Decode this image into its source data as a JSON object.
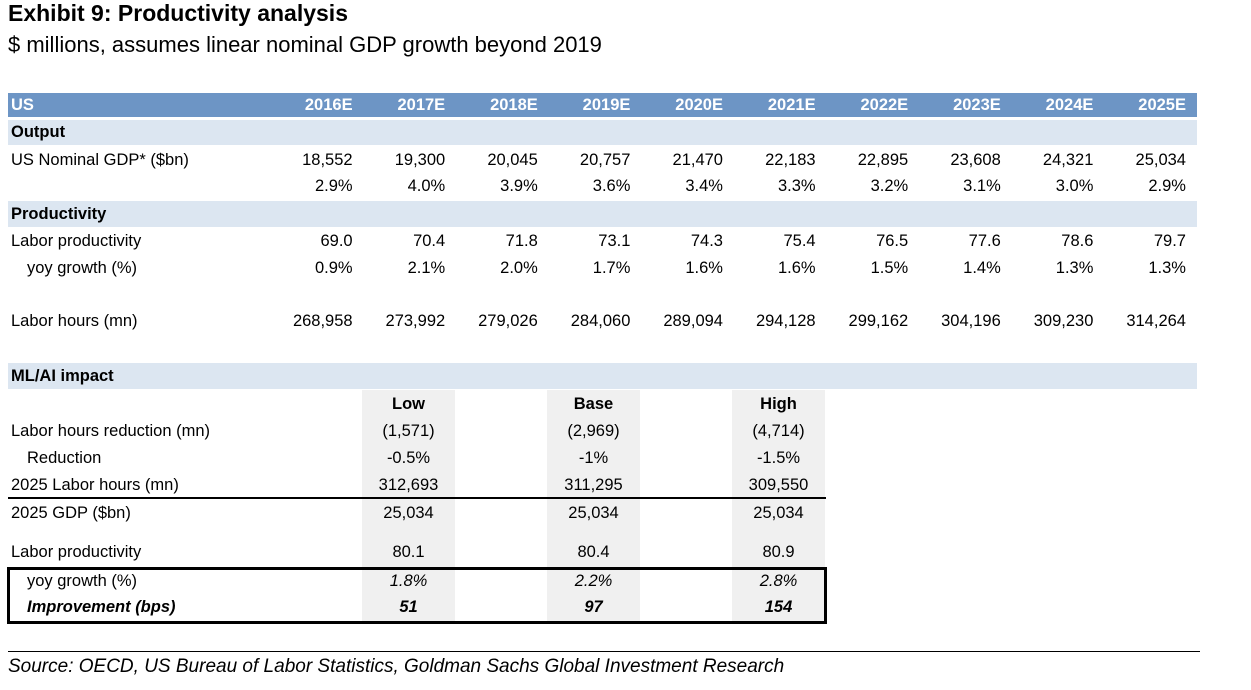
{
  "title": "Exhibit 9: Productivity analysis",
  "subtitle": "$ millions, assumes linear nominal GDP growth beyond 2019",
  "table": {
    "header": {
      "label": "US",
      "years": [
        "2016E",
        "2017E",
        "2018E",
        "2019E",
        "2020E",
        "2021E",
        "2022E",
        "2023E",
        "2024E",
        "2025E"
      ]
    },
    "rows": [
      {
        "type": "section",
        "label": "Output",
        "values": []
      },
      {
        "type": "data",
        "label": "US Nominal GDP* ($bn)",
        "values": [
          "18,552",
          "19,300",
          "20,045",
          "20,757",
          "21,470",
          "22,183",
          "22,895",
          "23,608",
          "24,321",
          "25,034"
        ]
      },
      {
        "type": "data",
        "label": "",
        "values": [
          "2.9%",
          "4.0%",
          "3.9%",
          "3.6%",
          "3.4%",
          "3.3%",
          "3.2%",
          "3.1%",
          "3.0%",
          "2.9%"
        ]
      },
      {
        "type": "section",
        "label": "Productivity",
        "values": []
      },
      {
        "type": "data",
        "label": "Labor productivity",
        "values": [
          "69.0",
          "70.4",
          "71.8",
          "73.1",
          "74.3",
          "75.4",
          "76.5",
          "77.6",
          "78.6",
          "79.7"
        ]
      },
      {
        "type": "indent",
        "label": "yoy growth (%)",
        "values": [
          "0.9%",
          "2.1%",
          "2.0%",
          "1.7%",
          "1.6%",
          "1.6%",
          "1.5%",
          "1.4%",
          "1.3%",
          "1.3%"
        ]
      },
      {
        "type": "data",
        "label": "Labor hours (mn)",
        "values": [
          "268,958",
          "273,992",
          "279,026",
          "284,060",
          "289,094",
          "294,128",
          "299,162",
          "304,196",
          "309,230",
          "314,264"
        ]
      },
      {
        "type": "section",
        "label": "ML/AI impact",
        "values": []
      }
    ]
  },
  "scenarios": {
    "headers": [
      "Low",
      "Base",
      "High"
    ],
    "rows": [
      {
        "label": "Labor hours reduction (mn)",
        "style": "normal",
        "values": [
          "(1,571)",
          "(2,969)",
          "(4,714)"
        ]
      },
      {
        "label": "Reduction",
        "style": "indent",
        "values": [
          "-0.5%",
          "-1%",
          "-1.5%"
        ]
      },
      {
        "label": "2025 Labor hours (mn)",
        "style": "normal",
        "values": [
          "312,693",
          "311,295",
          "309,550"
        ]
      },
      {
        "label": "2025 GDP ($bn)",
        "style": "normal",
        "values": [
          "25,034",
          "25,034",
          "25,034"
        ]
      },
      {
        "label": "Labor productivity",
        "style": "normal",
        "values": [
          "80.1",
          "80.4",
          "80.9"
        ]
      },
      {
        "label": "yoy growth (%)",
        "style": "indent-italic-values",
        "values": [
          "1.8%",
          "2.2%",
          "2.8%"
        ]
      },
      {
        "label": "Improvement (bps)",
        "style": "bold-italic",
        "values": [
          "51",
          "97",
          "154"
        ]
      }
    ]
  },
  "source": "Source: OECD, US Bureau of Labor Statistics, Goldman Sachs Global Investment Research",
  "colors": {
    "header": "#6d95c5",
    "section": "#dce6f1",
    "shade": "#f0f0f0"
  }
}
